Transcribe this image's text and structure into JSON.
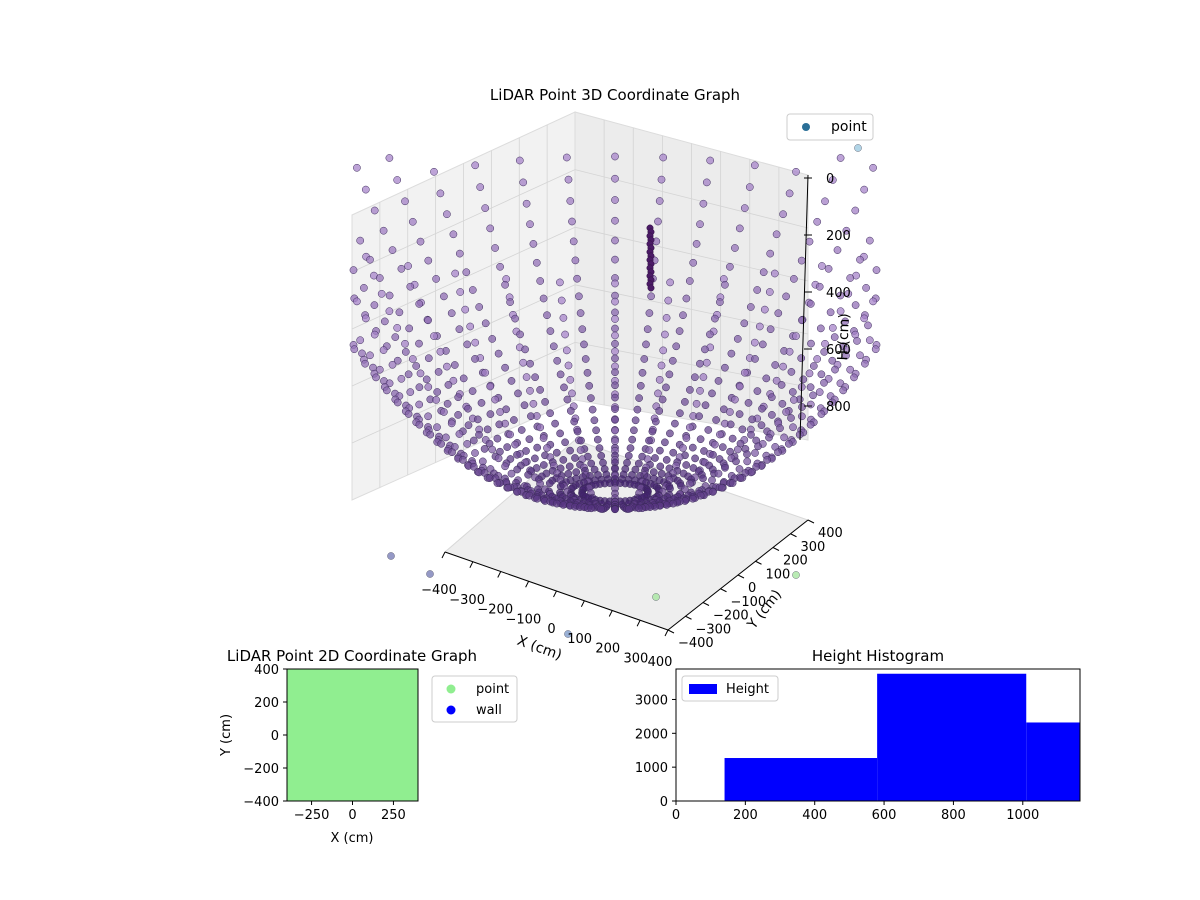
{
  "chart_data": [
    {
      "type": "scatter3d",
      "title": "LiDAR Point 3D Coordinate Graph",
      "xlabel": "X (cm)",
      "ylabel": "Y (cm)",
      "zlabel": "H (cm)",
      "x_ticks": [
        "−400",
        "−300",
        "−200",
        "−100",
        "0",
        "100",
        "200",
        "300",
        "400"
      ],
      "y_ticks": [
        "−400",
        "−300",
        "−200",
        "−100",
        "0",
        "100",
        "200",
        "300",
        "400"
      ],
      "z_ticks": [
        "0",
        "200",
        "400",
        "600",
        "800"
      ],
      "xlim": [
        -400,
        400
      ],
      "ylim": [
        -400,
        400
      ],
      "zlim": [
        1100,
        0
      ],
      "legend": {
        "entries": [
          "point"
        ],
        "position": "top-right"
      },
      "colormap": "viridis",
      "description_shape": "bowl of radial point rays, 40 rays x 30 rings"
    },
    {
      "type": "scatter",
      "title": "LiDAR Point 2D Coordinate Graph",
      "xlabel": "X (cm)",
      "ylabel": "Y (cm)",
      "x_ticks": [
        "−250",
        "0",
        "250"
      ],
      "y_ticks": [
        "400",
        "200",
        "0",
        "−200",
        "−400"
      ],
      "xlim": [
        -400,
        400
      ],
      "ylim": [
        -400,
        400
      ],
      "series": [
        {
          "name": "point",
          "color": "#90ee90"
        },
        {
          "name": "wall",
          "color": "#0000ff"
        }
      ],
      "legend": {
        "position": "outside-right"
      }
    },
    {
      "type": "bar",
      "title": "Height Histogram",
      "x_ticks": [
        "0",
        "200",
        "400",
        "600",
        "800",
        "1000"
      ],
      "y_ticks": [
        "0",
        "1000",
        "2000",
        "3000"
      ],
      "xlim": [
        0,
        1165
      ],
      "ylim": [
        0,
        3900
      ],
      "bins": [
        {
          "x0": 0,
          "x1": 140,
          "value": 0
        },
        {
          "x0": 140,
          "x1": 580,
          "value": 1270
        },
        {
          "x0": 580,
          "x1": 1010,
          "value": 3760
        },
        {
          "x0": 1010,
          "x1": 1165,
          "value": 2320
        }
      ],
      "series": [
        {
          "name": "Height",
          "color": "#0000ff"
        }
      ],
      "legend": {
        "position": "top-left"
      }
    }
  ]
}
